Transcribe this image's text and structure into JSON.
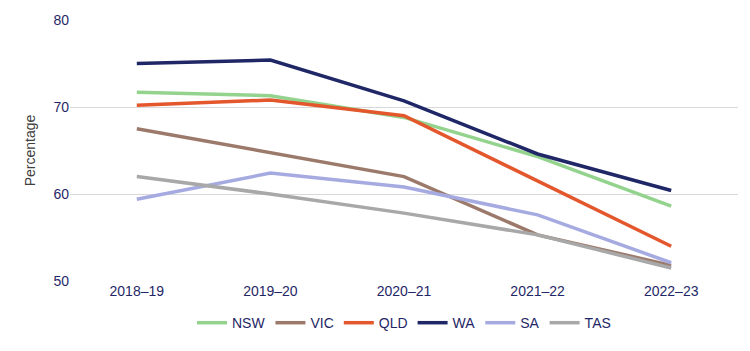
{
  "chart_data": {
    "type": "line",
    "y_label": "Percentage",
    "categories": [
      "2018–19",
      "2019–20",
      "2020–21",
      "2021–22",
      "2022–23"
    ],
    "series": [
      {
        "name": "NSW",
        "color": "#93d38d",
        "values": [
          71.7,
          71.3,
          68.8,
          64.3,
          58.6
        ]
      },
      {
        "name": "VIC",
        "color": "#9c7a6b",
        "values": [
          67.5,
          64.8,
          62.0,
          55.3,
          51.8
        ]
      },
      {
        "name": "QLD",
        "color": "#e4562c",
        "values": [
          70.2,
          70.8,
          69.0,
          61.5,
          54.0
        ]
      },
      {
        "name": "WA",
        "color": "#1f2767",
        "values": [
          75.0,
          75.4,
          70.7,
          64.6,
          60.4
        ]
      },
      {
        "name": "SA",
        "color": "#a5abe0",
        "values": [
          59.4,
          62.4,
          60.8,
          57.6,
          52.1
        ]
      },
      {
        "name": "TAS",
        "color": "#a8a8a8",
        "values": [
          62.0,
          60.0,
          57.8,
          55.3,
          51.5
        ]
      }
    ],
    "ylim": [
      50,
      80
    ],
    "yticks": [
      50,
      60,
      70,
      80
    ],
    "grid": true,
    "legend": "bottom"
  }
}
